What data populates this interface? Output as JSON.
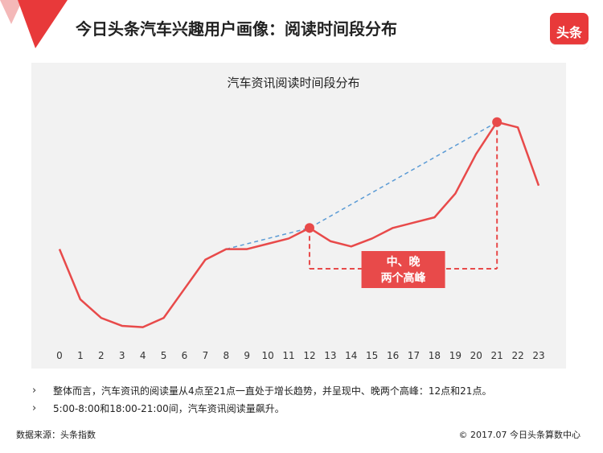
{
  "header": {
    "title": "今日头条汽车兴趣用户画像：阅读时间段分布",
    "logo_text": "头条"
  },
  "chart_data": {
    "type": "line",
    "title": "汽车资讯阅读时间段分布",
    "x": [
      "0",
      "1",
      "2",
      "3",
      "4",
      "5",
      "6",
      "7",
      "8",
      "9",
      "10",
      "11",
      "12",
      "13",
      "14",
      "15",
      "16",
      "17",
      "18",
      "19",
      "20",
      "21",
      "22",
      "23"
    ],
    "series": [
      {
        "values": [
          30,
          11,
          4,
          1,
          0.5,
          4,
          15,
          26,
          30,
          30,
          32,
          34,
          38,
          33,
          31,
          34,
          38,
          40,
          42,
          51,
          66,
          78,
          76,
          54
        ]
      }
    ],
    "ylim": [
      -6,
      84
    ],
    "peaks": [
      12,
      21
    ],
    "trend_line_hours": [
      8,
      12,
      21
    ],
    "annotation": [
      "中、晚",
      "两个高峰"
    ],
    "line_color": "#e84a4a",
    "trend_color": "#5b9bd5",
    "panel_color": "#f2f2f2"
  },
  "notes": [
    "整体而言，汽车资讯的阅读量从4点至21点一直处于增长趋势，并呈现中、晚两个高峰：12点和21点。",
    "5:00-8:00和18:00-21:00间，汽车资讯阅读量飙升。"
  ],
  "footer": {
    "source": "数据来源：头条指数",
    "copyright": "© 2017.07 今日头条算数中心"
  }
}
